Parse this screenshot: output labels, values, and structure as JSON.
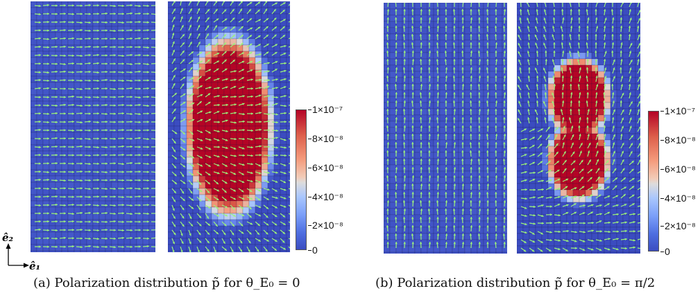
{
  "figure": {
    "panels": [
      {
        "id": "a-left",
        "field": "uniform",
        "arrows": "horizontal"
      },
      {
        "id": "a-right",
        "field": "single-ellipse",
        "arrows": "horizontal"
      },
      {
        "id": "b-left",
        "field": "uniform",
        "arrows": "vertical"
      },
      {
        "id": "b-right",
        "field": "double-lobe",
        "arrows": "vertical"
      }
    ],
    "colorbar": {
      "ticks": [
        "1×10⁻⁷",
        "8×10⁻⁸",
        "6×10⁻⁸",
        "4×10⁻⁸",
        "2×10⁻⁸",
        "0"
      ],
      "colormap": "coolwarm"
    },
    "colors": {
      "low": "#3b4cc0",
      "high": "#b40426",
      "arrow": "#9cf27a"
    },
    "axes": {
      "e1": "ê₁",
      "e2": "ê₂"
    },
    "captions": {
      "a": "(a) Polarization distribution p̃ for θ_E₀ = 0",
      "b": "(b) Polarization distribution p̃ for θ_E₀ = π/2"
    }
  }
}
